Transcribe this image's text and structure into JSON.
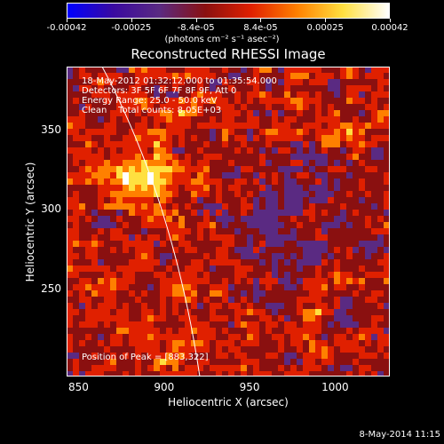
{
  "colorbar": {
    "tick_labels": [
      "-0.00042",
      "-0.00025",
      "-8.4e-05",
      "8.4e-05",
      "0.00025",
      "0.00042"
    ],
    "unit_label": "(photons cm⁻² s⁻¹ asec⁻²)",
    "colors": [
      "#0000ff",
      "#3a0aa0",
      "#5a2a82",
      "#8a1010",
      "#e02000",
      "#ff8000",
      "#ffe040",
      "#ffffff"
    ]
  },
  "chart_data": {
    "type": "heatmap",
    "title": "Reconstructed RHESSI Image",
    "xlabel": "Heliocentric X (arcsec)",
    "ylabel": "Heliocentric Y (arcsec)",
    "xlim": [
      843,
      1032
    ],
    "ylim": [
      195,
      390
    ],
    "x_ticks": [
      850,
      900,
      950,
      1000
    ],
    "y_ticks": [
      250,
      300,
      350
    ],
    "annotations": [
      "18-May-2012 01:32:12.000 to 01:35:54.000",
      "Detectors: 3F 5F 6F 7F 8F 9F, Att 0",
      "Energy Range: 25.0 - 50.0 keV",
      "Clean    Total counts: 8.05E+03"
    ],
    "peak_label": "Position of Peak = [883,322]",
    "peak": [
      883,
      322
    ]
  },
  "footer": {
    "date": "8-May-2014 11:15"
  }
}
